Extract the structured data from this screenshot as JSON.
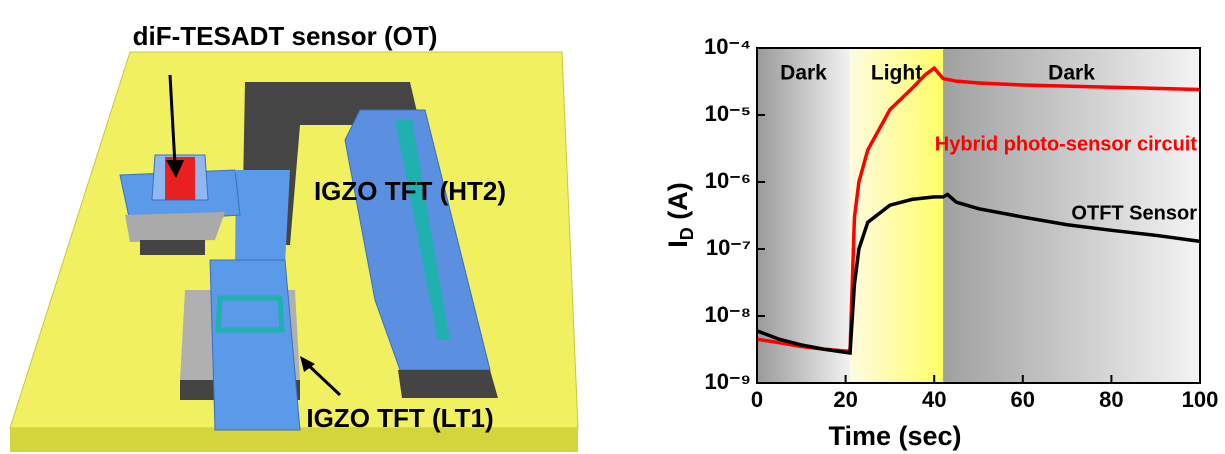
{
  "diagram": {
    "labels": [
      "diF-TESADT sensor (OT)",
      "IGZO  TFT (HT2)",
      "IGZO  TFT (LT1)"
    ]
  },
  "chart_data": {
    "type": "line",
    "xlabel": "Time (sec)",
    "ylabel": {
      "main": "I",
      "sub": "D",
      "unit": " (A)"
    },
    "xlim": [
      0,
      100
    ],
    "xticks": [
      0,
      20,
      40,
      60,
      80,
      100
    ],
    "yscale": "log",
    "ylim": [
      1e-09,
      0.0001
    ],
    "yticks": [
      {
        "value": 1e-09,
        "label": "10⁻⁹"
      },
      {
        "value": 1e-08,
        "label": "10⁻⁸"
      },
      {
        "value": 1e-07,
        "label": "10⁻⁷"
      },
      {
        "value": 1e-06,
        "label": "10⁻⁶"
      },
      {
        "value": 1e-05,
        "label": "10⁻⁵"
      },
      {
        "value": 0.0001,
        "label": "10⁻⁴"
      }
    ],
    "regions": [
      {
        "label": "Dark",
        "start": 0,
        "end": 21,
        "colors": [
          "#9a9a9a",
          "#f2f2f2"
        ]
      },
      {
        "label": "Light",
        "start": 21,
        "end": 42,
        "colors": [
          "#fffbe0",
          "#ffff66"
        ]
      },
      {
        "label": "Dark",
        "start": 42,
        "end": 100,
        "colors": [
          "#a0a0a0",
          "#f4f4f4"
        ]
      }
    ],
    "series": [
      {
        "name": "Hybrid photo-sensor circuit",
        "color": "#ff0000",
        "x": [
          0,
          5,
          10,
          15,
          20,
          21,
          21.5,
          22,
          23,
          25,
          30,
          35,
          38,
          40,
          42,
          45,
          50,
          60,
          70,
          80,
          90,
          100
        ],
        "values": [
          4.5e-09,
          4e-09,
          3.5e-09,
          3.2e-09,
          3e-09,
          3e-09,
          3e-08,
          3e-07,
          1e-06,
          3e-06,
          1.2e-05,
          2.5e-05,
          4e-05,
          5e-05,
          3.5e-05,
          3.2e-05,
          3e-05,
          2.8e-05,
          2.7e-05,
          2.6e-05,
          2.5e-05,
          2.4e-05
        ]
      },
      {
        "name": "OTFT Sensor",
        "color": "#000000",
        "x": [
          0,
          5,
          10,
          15,
          21,
          22,
          23,
          25,
          30,
          35,
          40,
          42,
          43,
          45,
          50,
          60,
          70,
          80,
          90,
          100
        ],
        "values": [
          6e-09,
          4.5e-09,
          3.7e-09,
          3.2e-09,
          2.8e-09,
          3e-08,
          1e-07,
          2.5e-07,
          4.5e-07,
          5.5e-07,
          6e-07,
          6e-07,
          6.5e-07,
          5e-07,
          4e-07,
          3e-07,
          2.3e-07,
          1.9e-07,
          1.6e-07,
          1.3e-07
        ]
      }
    ]
  }
}
